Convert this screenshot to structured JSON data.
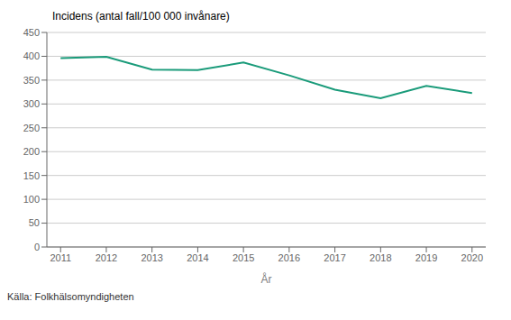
{
  "chart_data": {
    "type": "line",
    "ylabel": "Incidens (antal fall/100 000 invånare)",
    "xlabel": "År",
    "annotations": [
      "Källa: Folkhälsomyndigheten"
    ],
    "x": [
      2011,
      2012,
      2013,
      2014,
      2015,
      2016,
      2017,
      2018,
      2019,
      2020
    ],
    "values": [
      396,
      399,
      372,
      371,
      387,
      360,
      330,
      312,
      338,
      323
    ],
    "color": "#1a9b7a",
    "xlim": [
      2010.7,
      2020.3
    ],
    "xticks": [
      2011,
      2012,
      2013,
      2014,
      2015,
      2016,
      2017,
      2018,
      2019,
      2020
    ],
    "ylim": [
      0,
      450
    ],
    "yticks": [
      0,
      50,
      100,
      150,
      200,
      250,
      300,
      350,
      400,
      450
    ],
    "grid": true
  }
}
